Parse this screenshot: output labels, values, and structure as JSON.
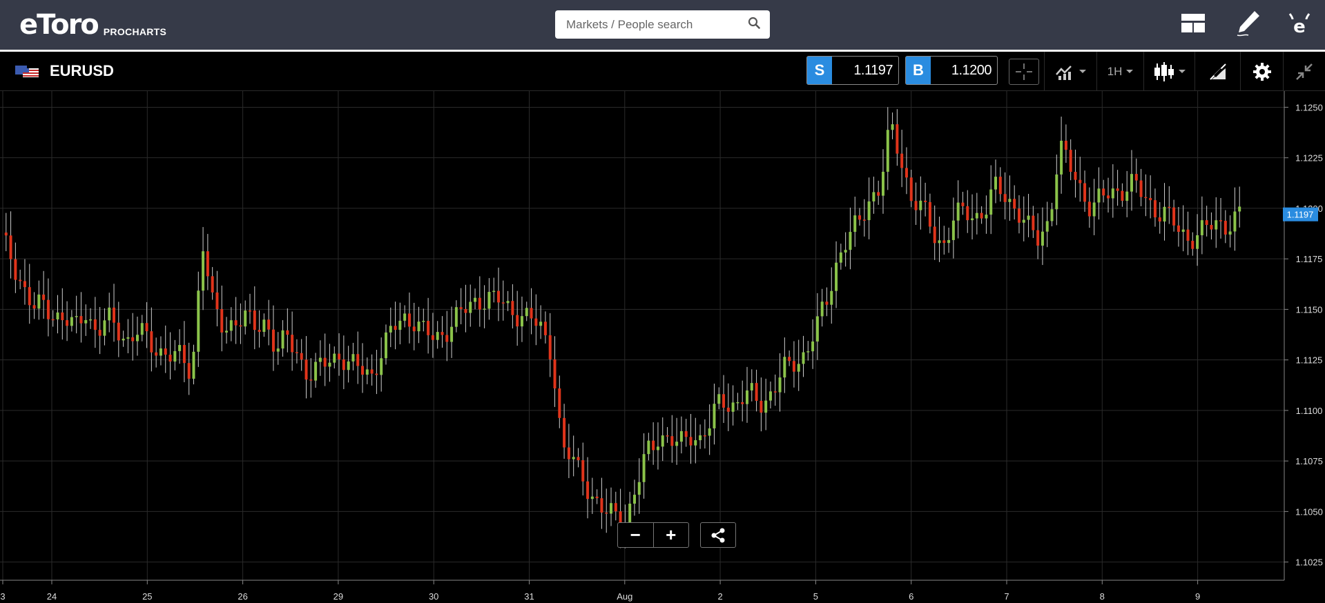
{
  "header": {
    "logo_text": "eToro",
    "logo_sub": "PROCHARTS",
    "search_placeholder": "Markets / People search",
    "icons": [
      "layout-icon",
      "pencil-icon",
      "etoro-profile-icon"
    ]
  },
  "instrument": {
    "symbol": "EURUSD",
    "flag": "eu-us-flag",
    "sell_tag": "S",
    "sell_price": "1.1197",
    "buy_tag": "B",
    "buy_price": "1.1200",
    "timeframe": "1H"
  },
  "toolbar_icons": [
    "crosshair-icon",
    "indicators-icon",
    "candlestick-type-icon",
    "drawing-tools-icon",
    "gear-icon",
    "collapse-icon"
  ],
  "controls": {
    "zoom_out": "−",
    "zoom_in": "+",
    "share_icon": "share-icon"
  },
  "colors": {
    "up": "#8bc34a",
    "down": "#e0341b",
    "accent": "#2a8ce0",
    "header_bg": "#363a48"
  },
  "chart_data": {
    "type": "candlestick",
    "symbol": "EURUSD",
    "interval": "1H",
    "current_price": "1.1197",
    "yticks": [
      "1.1250",
      "1.1225",
      "1.1200",
      "1.1175",
      "1.1150",
      "1.1125",
      "1.1100",
      "1.1075",
      "1.1050",
      "1.1025"
    ],
    "ylim": [
      1.1016,
      1.1258
    ],
    "xticks": [
      "3",
      "24",
      "25",
      "26",
      "29",
      "30",
      "31",
      "Aug",
      "2",
      "5",
      "6",
      "7",
      "8",
      "9"
    ],
    "grid": true,
    "close_path": [
      1.1185,
      1.1175,
      1.1162,
      1.115,
      1.1152,
      1.1148,
      1.1145,
      1.114,
      1.115,
      1.1138,
      1.1145,
      1.114,
      1.1135,
      1.114,
      1.1132,
      1.113,
      1.1128,
      1.1125,
      1.1118,
      1.1185,
      1.115,
      1.114,
      1.1145,
      1.1146,
      1.114,
      1.1145,
      1.113,
      1.1135,
      1.1128,
      1.1118,
      1.112,
      1.1125,
      1.1128,
      1.1122,
      1.112,
      1.1118,
      1.113,
      1.114,
      1.1146,
      1.1145,
      1.1138,
      1.1135,
      1.114,
      1.1146,
      1.115,
      1.1155,
      1.1156,
      1.1154,
      1.115,
      1.1148,
      1.1145,
      1.114,
      1.113,
      1.108,
      1.1075,
      1.1068,
      1.1055,
      1.1048,
      1.105,
      1.1045,
      1.106,
      1.108,
      1.1088,
      1.1085,
      1.1082,
      1.109,
      1.1085,
      1.1092,
      1.1108,
      1.1102,
      1.1105,
      1.1108,
      1.1104,
      1.111,
      1.112,
      1.1125,
      1.1128,
      1.114,
      1.1155,
      1.1175,
      1.1185,
      1.1192,
      1.1205,
      1.121,
      1.124,
      1.1225,
      1.1205,
      1.12,
      1.1188,
      1.1182,
      1.1195,
      1.1198,
      1.1196,
      1.12,
      1.121,
      1.1205,
      1.12,
      1.119,
      1.1184,
      1.1195,
      1.123,
      1.122,
      1.121,
      1.12,
      1.1205,
      1.1208,
      1.121,
      1.1212,
      1.1205,
      1.12,
      1.1198,
      1.119,
      1.1185,
      1.1188,
      1.119,
      1.1192,
      1.1193,
      1.1197
    ]
  }
}
